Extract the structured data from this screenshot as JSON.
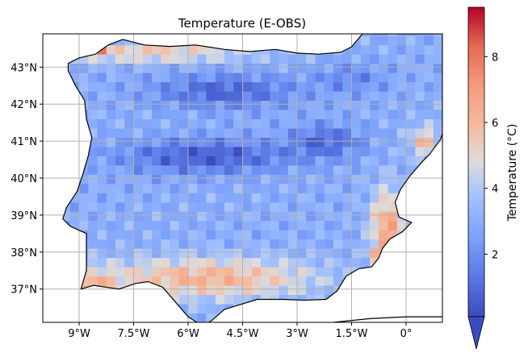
{
  "chart_data": {
    "type": "heatmap",
    "title": "Temperature (E-OBS)",
    "xlabel": "",
    "ylabel": "",
    "xlim": [
      -10.0,
      1.0
    ],
    "ylim": [
      36.1,
      43.9
    ],
    "x_ticks": [
      -9,
      -7.5,
      -6,
      -4.5,
      -3,
      -1.5,
      0
    ],
    "x_tick_labels": [
      "9°W",
      "7.5°W",
      "6°W",
      "4.5°W",
      "3°W",
      "1.5°W",
      "0°"
    ],
    "y_ticks": [
      37,
      38,
      39,
      40,
      41,
      42,
      43
    ],
    "y_tick_labels": [
      "37°N",
      "38°N",
      "39°N",
      "40°N",
      "41°N",
      "42°N",
      "43°N"
    ],
    "grid": true,
    "colormap": "coolwarm",
    "colorbar": {
      "label": "Temperature (°C)",
      "range": [
        0.1,
        9.5
      ],
      "ticks": [
        2,
        4,
        6,
        8
      ],
      "tick_labels": [
        "2",
        "4",
        "6",
        "8"
      ],
      "extend": "min"
    },
    "grid_resolution_deg": 0.25,
    "values_description_rows": [
      {
        "lat": 43.25,
        "lon_range": [
          -9.0,
          1.0
        ],
        "values": "5.5-6.5 along the north coast, 9.5 hot spot near 8.5°W, cooler 2-3 inland, north-east 3-4"
      },
      {
        "lat": 42.5,
        "lon_range": [
          -8.5,
          1.0
        ],
        "values": "central and northern plateau 0.5-1.5, north-west 3-4, north-east 1-2"
      },
      {
        "lat": 41.5,
        "lon_range": [
          -8.5,
          1.0
        ],
        "values": "north plateau 0.5-1.5, Ebro basin 2-4, coast 5-6.5"
      },
      {
        "lat": 40.5,
        "lon_range": [
          -9.0,
          1.0
        ],
        "values": "central system 0.3-1, east coast 6-7"
      },
      {
        "lat": 39.5,
        "lon_range": [
          -9.0,
          0.5
        ],
        "values": "interior 1.5-3, east coast 6.5-7.5"
      },
      {
        "lat": 38.5,
        "lon_range": [
          -9.0,
          -0.5
        ],
        "values": "interior 2-3.5, south-east coast 7-9"
      },
      {
        "lat": 37.5,
        "lon_range": [
          -9.0,
          -1.5
        ],
        "values": "south 5-7.5"
      },
      {
        "lat": 36.75,
        "lon_range": [
          -8.5,
          -2.0
        ],
        "values": "southern coast 6-7"
      }
    ]
  }
}
